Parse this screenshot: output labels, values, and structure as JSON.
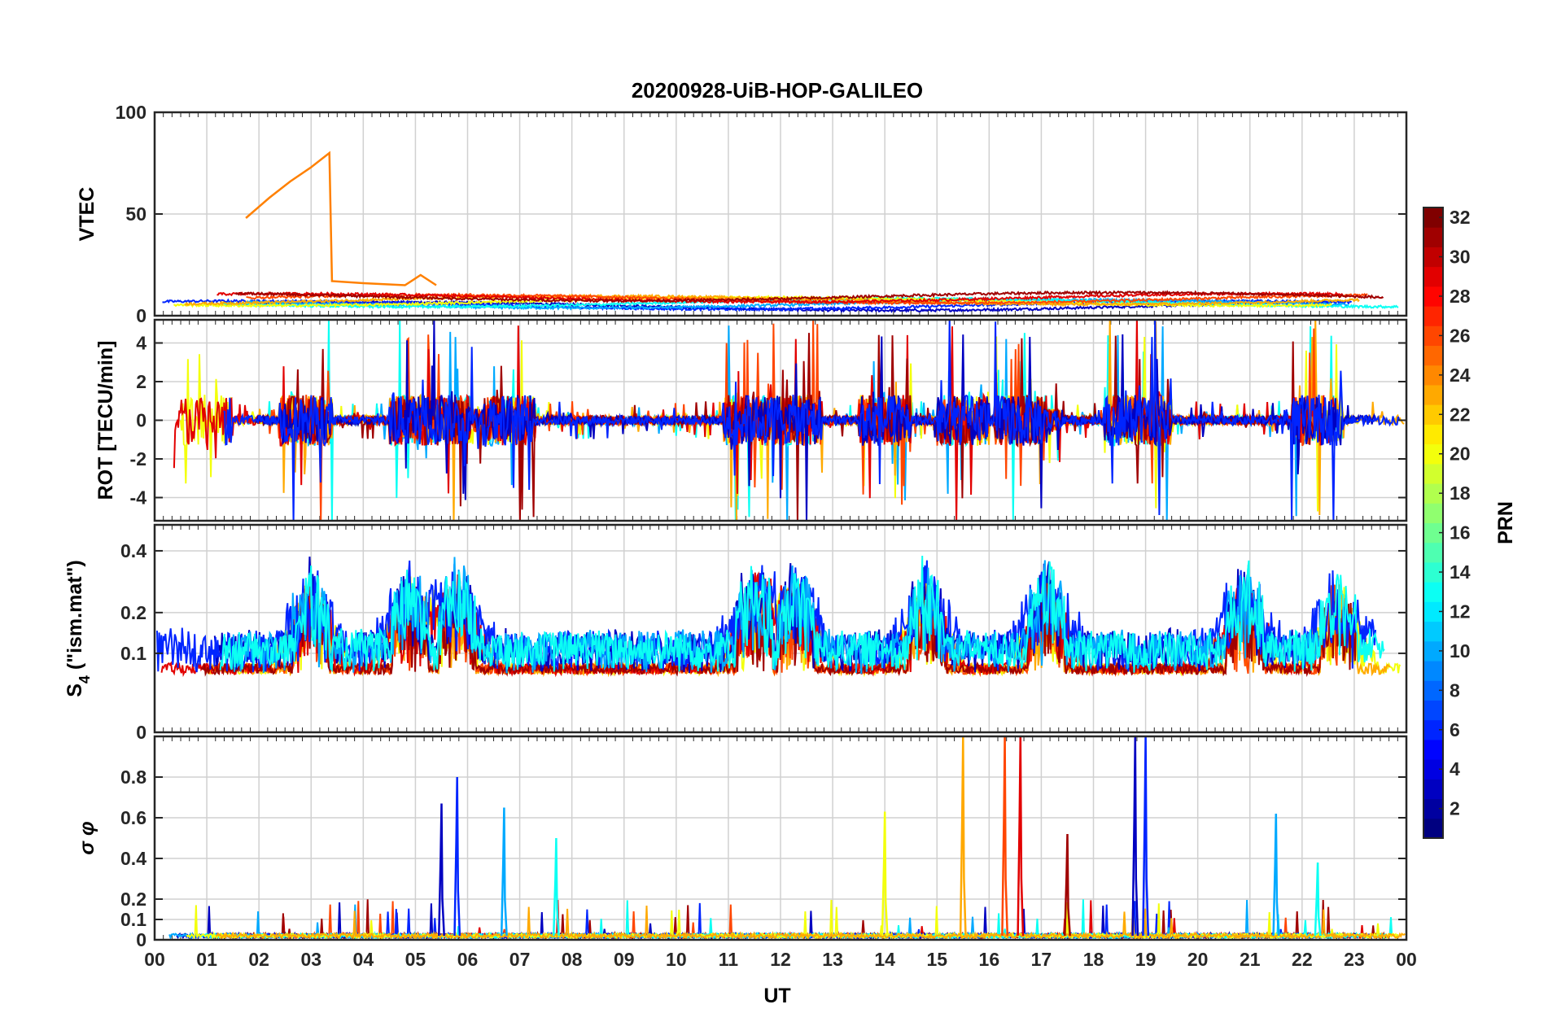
{
  "chart_data": {
    "type": "line",
    "title": "20200928-UiB-HOP-GALILEO",
    "xlabel": "UT",
    "x_ticks": [
      "00",
      "01",
      "02",
      "03",
      "04",
      "05",
      "06",
      "07",
      "08",
      "09",
      "10",
      "11",
      "12",
      "13",
      "14",
      "15",
      "16",
      "17",
      "18",
      "19",
      "20",
      "21",
      "22",
      "23",
      "00"
    ],
    "x_range_hours": [
      0,
      24
    ],
    "colorbar": {
      "label": "PRN",
      "range": [
        1,
        32
      ],
      "ticks": [
        "2",
        "4",
        "6",
        "8",
        "10",
        "12",
        "14",
        "16",
        "18",
        "20",
        "22",
        "24",
        "26",
        "28",
        "30",
        "32"
      ],
      "colormap": "jet",
      "levels": 32
    },
    "panels": [
      {
        "ylabel": "VTEC",
        "ylim": [
          0,
          100
        ],
        "yticks": [
          "0",
          "50",
          "100"
        ],
        "grid": true,
        "highlighted_series": {
          "name": "PRN 24",
          "color": "#ff8000",
          "points": [
            [
              1.75,
              48
            ],
            [
              2.2,
              58
            ],
            [
              2.6,
              66
            ],
            [
              3.0,
              73
            ],
            [
              3.35,
              80
            ],
            [
              3.4,
              17
            ],
            [
              4.0,
              16
            ],
            [
              4.8,
              15
            ],
            [
              5.1,
              20
            ],
            [
              5.4,
              15
            ]
          ]
        },
        "background_level": [
          3,
          10
        ]
      },
      {
        "ylabel": "ROT [TECU/min]",
        "ylim": [
          -5.2,
          5.2
        ],
        "yticks": [
          "-4",
          "-2",
          "0",
          "2",
          "4"
        ],
        "grid": true,
        "burst_hours": [
          1.0,
          2.9,
          5.0,
          5.6,
          6.8,
          11.4,
          12.3,
          14.0,
          15.5,
          16.6,
          18.7,
          19.0,
          22.3
        ]
      },
      {
        "ylabel": "S4 (\"ism.mat\")",
        "ylim": [
          0,
          0.5
        ],
        "yticks": [
          "0",
          "0.1",
          "0.2",
          "0.4"
        ],
        "grid": true,
        "peak_hours": [
          3.0,
          4.9,
          5.8,
          11.5,
          12.3,
          14.8,
          17.1,
          20.9,
          22.7
        ]
      },
      {
        "ylabel": "σ φ",
        "ylim": [
          0,
          1
        ],
        "yticks": [
          "0",
          "0.1",
          "0.2",
          "0.4",
          "0.6",
          "0.8"
        ],
        "grid": true,
        "spikes": [
          [
            5.5,
            0.67
          ],
          [
            5.8,
            0.8
          ],
          [
            6.7,
            0.65
          ],
          [
            7.7,
            0.5
          ],
          [
            14.0,
            0.63
          ],
          [
            15.5,
            1.0
          ],
          [
            16.3,
            1.0
          ],
          [
            16.6,
            1.0
          ],
          [
            17.5,
            0.52
          ],
          [
            18.8,
            1.0
          ],
          [
            19.0,
            1.0
          ],
          [
            21.5,
            0.62
          ],
          [
            22.3,
            0.38
          ]
        ]
      }
    ]
  }
}
